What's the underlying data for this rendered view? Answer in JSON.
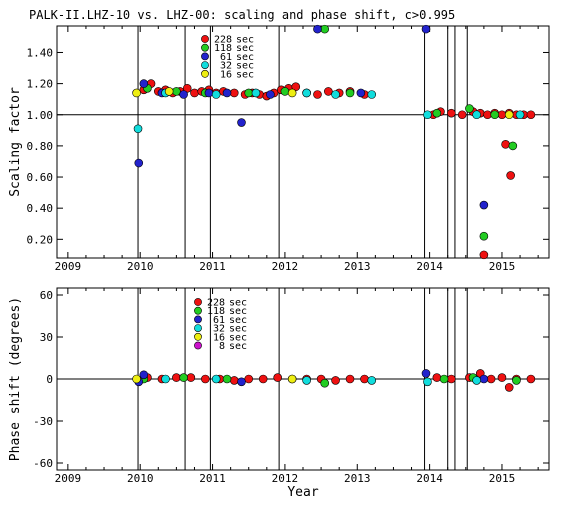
{
  "figure_title": "PALK-II.LHZ-10 vs. LHZ-00: scaling and phase shift, c>0.995",
  "xlabel": "Year",
  "colors": {
    "228 sec": "#ee1111",
    "118 sec": "#22cc22",
    "61 sec": "#2222cc",
    "32 sec": "#11dddd",
    "16 sec": "#eeee11",
    "8 sec": "#cc11cc"
  },
  "chart_data": [
    {
      "type": "scatter",
      "title": "PALK-II.LHZ-10 vs. LHZ-00: scaling and phase shift, c>0.995",
      "xlabel": "",
      "ylabel": "Scaling factor",
      "xlim": [
        2008.85,
        2015.65
      ],
      "ylim": [
        0.08,
        1.57
      ],
      "xticks": [
        "2009",
        "2010",
        "2011",
        "2012",
        "2013",
        "2014",
        "2015"
      ],
      "yticks": [
        "0.20",
        "0.40",
        "0.60",
        "0.80",
        "1.00",
        "1.20",
        "1.40"
      ],
      "reference_line": 1.0,
      "vertical_lines": [
        2009.97,
        2010.62,
        2010.97,
        2011.92,
        2013.93,
        2014.25,
        2014.35,
        2014.52
      ],
      "legend": [
        "228 sec",
        "118 sec",
        "61 sec",
        "32 sec",
        "16 sec"
      ],
      "series": [
        {
          "name": "228 sec",
          "color": "#ee1111",
          "x": [
            2010.05,
            2010.15,
            2010.25,
            2010.35,
            2010.45,
            2010.55,
            2010.65,
            2010.75,
            2010.85,
            2010.95,
            2011.05,
            2011.15,
            2011.3,
            2011.45,
            2011.55,
            2011.65,
            2011.75,
            2011.85,
            2011.95,
            2012.05,
            2012.15,
            2012.3,
            2012.45,
            2012.6,
            2012.75,
            2012.9,
            2013.1,
            2014.05,
            2014.15,
            2014.3,
            2014.45,
            2014.6,
            2014.7,
            2014.8,
            2014.9,
            2015.0,
            2015.1,
            2015.2,
            2015.3,
            2015.4,
            2014.75,
            2015.05,
            2015.12
          ],
          "y": [
            1.16,
            1.2,
            1.15,
            1.16,
            1.14,
            1.15,
            1.17,
            1.14,
            1.15,
            1.16,
            1.14,
            1.15,
            1.14,
            1.13,
            1.14,
            1.13,
            1.12,
            1.14,
            1.16,
            1.17,
            1.18,
            1.14,
            1.13,
            1.15,
            1.14,
            1.15,
            1.13,
            1.0,
            1.02,
            1.01,
            1.0,
            1.02,
            1.01,
            1.0,
            1.01,
            1.0,
            1.01,
            1.0,
            1.0,
            1.0,
            0.1,
            0.81,
            0.61
          ]
        },
        {
          "name": "118 sec",
          "color": "#22cc22",
          "x": [
            2010.1,
            2010.5,
            2010.9,
            2011.5,
            2012.0,
            2012.55,
            2012.9,
            2014.1,
            2014.55,
            2014.75,
            2014.9,
            2015.15
          ],
          "y": [
            1.17,
            1.15,
            1.14,
            1.14,
            1.15,
            1.55,
            1.14,
            1.01,
            1.04,
            0.22,
            1.0,
            0.8
          ]
        },
        {
          "name": "61 sec",
          "color": "#2222cc",
          "x": [
            2009.98,
            2010.05,
            2010.3,
            2010.6,
            2010.95,
            2011.2,
            2011.4,
            2011.8,
            2012.45,
            2013.05,
            2013.95,
            2014.75
          ],
          "y": [
            0.69,
            1.2,
            1.14,
            1.13,
            1.14,
            1.14,
            0.95,
            1.13,
            1.55,
            1.14,
            1.55,
            0.42
          ]
        },
        {
          "name": "32 sec",
          "color": "#11dddd",
          "x": [
            2009.97,
            2010.35,
            2011.05,
            2011.6,
            2012.3,
            2012.7,
            2013.2,
            2013.97,
            2014.65,
            2015.25
          ],
          "y": [
            0.91,
            1.14,
            1.13,
            1.14,
            1.14,
            1.13,
            1.13,
            1.0,
            1.0,
            1.0
          ]
        },
        {
          "name": "16 sec",
          "color": "#eeee11",
          "x": [
            2009.95,
            2010.4,
            2012.1,
            2015.1
          ],
          "y": [
            1.14,
            1.15,
            1.14,
            1.0
          ]
        }
      ]
    },
    {
      "type": "scatter",
      "title": "",
      "xlabel": "Year",
      "ylabel": "Phase shift (degrees)",
      "xlim": [
        2008.85,
        2015.65
      ],
      "ylim": [
        -65,
        65
      ],
      "xticks": [
        "2009",
        "2010",
        "2011",
        "2012",
        "2013",
        "2014",
        "2015"
      ],
      "yticks": [
        "-60",
        "-30",
        "0",
        "30",
        "60"
      ],
      "reference_line": 0,
      "vertical_lines": [
        2009.97,
        2010.62,
        2010.97,
        2011.92,
        2013.93,
        2014.25,
        2014.35,
        2014.52
      ],
      "legend": [
        "228 sec",
        "118 sec",
        "61 sec",
        "32 sec",
        "16 sec",
        "8 sec"
      ],
      "series": [
        {
          "name": "228 sec",
          "color": "#ee1111",
          "x": [
            2010.1,
            2010.3,
            2010.5,
            2010.7,
            2010.9,
            2011.1,
            2011.3,
            2011.5,
            2011.7,
            2011.9,
            2012.1,
            2012.3,
            2012.5,
            2012.7,
            2012.9,
            2013.1,
            2014.1,
            2014.3,
            2014.55,
            2014.7,
            2014.85,
            2015.0,
            2015.1,
            2015.2,
            2015.4
          ],
          "y": [
            1,
            0,
            1,
            1,
            0,
            0,
            -1,
            0,
            0,
            1,
            0,
            0,
            0,
            -1,
            0,
            0,
            1,
            0,
            1,
            4,
            0,
            1,
            -6,
            0,
            0
          ]
        },
        {
          "name": "118 sec",
          "color": "#22cc22",
          "x": [
            2010.05,
            2010.6,
            2011.2,
            2012.55,
            2014.2,
            2014.6,
            2015.2
          ],
          "y": [
            0,
            1,
            0,
            -3,
            0,
            1,
            -1
          ]
        },
        {
          "name": "61 sec",
          "color": "#2222cc",
          "x": [
            2009.98,
            2010.05,
            2011.4,
            2013.95,
            2014.75
          ],
          "y": [
            -2,
            3,
            -2,
            4,
            0
          ]
        },
        {
          "name": "32 sec",
          "color": "#11dddd",
          "x": [
            2010.35,
            2011.05,
            2012.3,
            2013.2,
            2013.97,
            2014.65
          ],
          "y": [
            0,
            0,
            -1,
            -1,
            -2,
            -1
          ]
        },
        {
          "name": "16 sec",
          "color": "#eeee11",
          "x": [
            2009.95,
            2012.1
          ],
          "y": [
            0,
            0
          ]
        },
        {
          "name": "8 sec",
          "color": "#cc11cc",
          "x": [],
          "y": []
        }
      ]
    }
  ]
}
